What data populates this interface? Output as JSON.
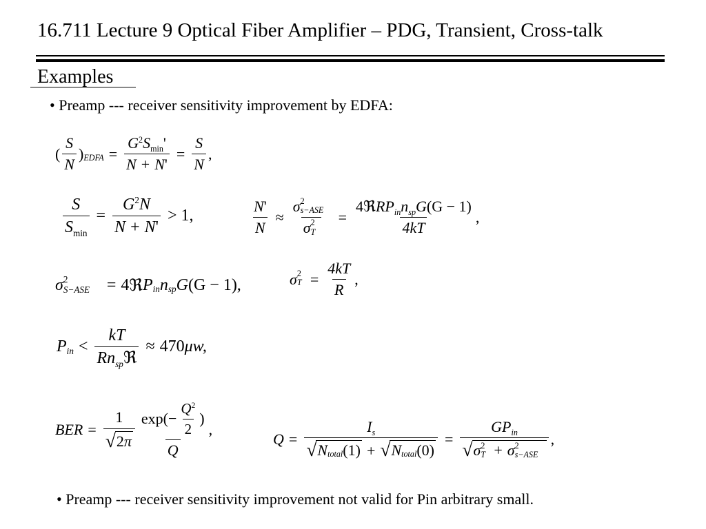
{
  "slide": {
    "title": "16.711 Lecture 9 Optical Fiber Amplifier – PDG, Transient, Cross-talk",
    "heading": "Examples",
    "bullet_1": "• Preamp --- receiver sensitivity improvement by EDFA:",
    "bullet_2": "• Preamp --- receiver sensitivity improvement not valid for Pin arbitrary small."
  },
  "symbols": {
    "S": "S",
    "N": "N",
    "G": "G",
    "Q": "Q",
    "P": "P",
    "R": "R",
    "kT": "kT",
    "fourkT": "4kT",
    "BER": "BER",
    "I": "I",
    "edfa": "EDFA",
    "min": "min",
    "in": "in",
    "sp": "sp",
    "s": "s",
    "total": "total",
    "T": "T",
    "sASE": "s−ASE",
    "SASE": "S−ASE",
    "sq": "2",
    "prime": "'",
    "one": "1",
    "two": "2",
    "four": "4",
    "gt1": "> 1,",
    "comma": ",",
    "lt": "<",
    "approx": "≈",
    "eq": "=",
    "plus": "+",
    "minus": "−",
    "re": "ℜ",
    "sigma": "σ",
    "pi": "π",
    "mu": "μ",
    "rhs_470": "470",
    "w": "w,",
    "exp": "exp(",
    "G_minus_1_close": "(G − 1)",
    "G_minus_1_end": "(G − 1),",
    "one_arg": "(1)",
    "zero_arg": "(0)"
  }
}
